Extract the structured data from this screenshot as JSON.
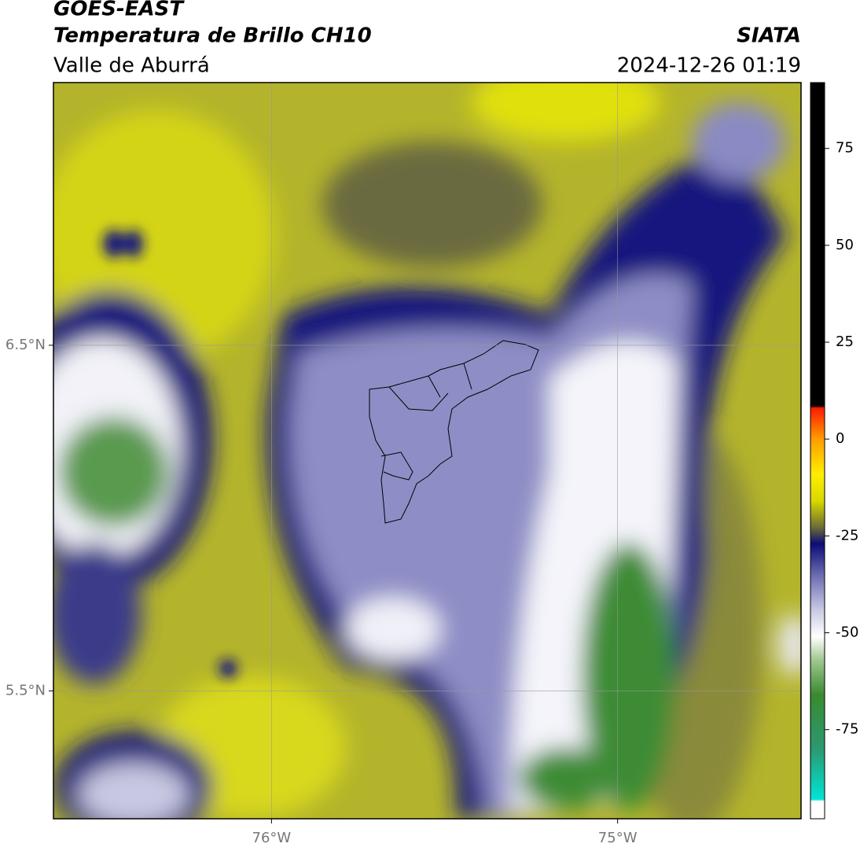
{
  "header": {
    "title": "GOES-EAST",
    "subtitle": "Temperatura de Brillo CH10",
    "region": "Valle de Aburrá",
    "source": "SIATA",
    "timestamp": "2024-12-26 01:19"
  },
  "map": {
    "xlim": [
      -76.63,
      -74.47
    ],
    "ylim": [
      5.13,
      7.26
    ],
    "xticks": [
      {
        "value": -76,
        "label": "76°W"
      },
      {
        "value": -75,
        "label": "75°W"
      }
    ],
    "yticks": [
      {
        "value": 6.5,
        "label": "6.5°N"
      },
      {
        "value": 5.5,
        "label": "5.5°N"
      }
    ],
    "grid": true
  },
  "colorbar": {
    "clim": [
      -98,
      92
    ],
    "ticks": [
      75,
      50,
      25,
      0,
      -25,
      -50,
      -75
    ],
    "colormap": [
      {
        "value": -98,
        "color": "#ffffff"
      },
      {
        "value": -93.5,
        "color": "#ffffff"
      },
      {
        "value": -93,
        "color": "#00e5d5"
      },
      {
        "value": -80,
        "color": "#2a9a70"
      },
      {
        "value": -66,
        "color": "#3a8a30"
      },
      {
        "value": -57,
        "color": "#a0c890"
      },
      {
        "value": -51,
        "color": "#ffffff"
      },
      {
        "value": -44,
        "color": "#c8c8e2"
      },
      {
        "value": -35,
        "color": "#6a6ab0"
      },
      {
        "value": -27,
        "color": "#0c0c78"
      },
      {
        "value": -23,
        "color": "#686838"
      },
      {
        "value": -16,
        "color": "#d8d800"
      },
      {
        "value": -9,
        "color": "#ffee00"
      },
      {
        "value": 0,
        "color": "#ff9d00"
      },
      {
        "value": 8,
        "color": "#ff1a00"
      },
      {
        "value": 8.5,
        "color": "#000000"
      },
      {
        "value": 92,
        "color": "#000000"
      }
    ]
  }
}
